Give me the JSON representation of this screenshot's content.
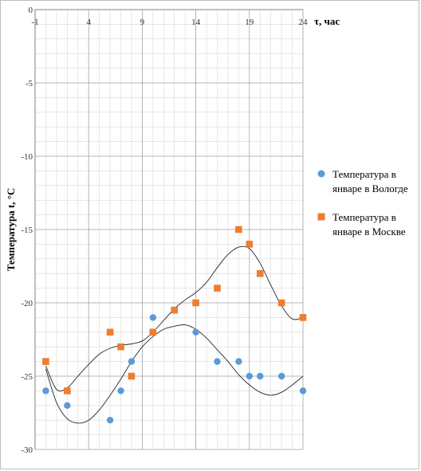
{
  "chart_data": {
    "type": "scatter",
    "xlabel": "τ, час",
    "ylabel": "Температура  t,  °C",
    "x_ticks": [
      -1,
      4,
      9,
      14,
      19,
      24
    ],
    "y_ticks": [
      0,
      -5,
      -10,
      -15,
      -20,
      -25,
      -30
    ],
    "xlim": [
      -1,
      24
    ],
    "ylim": [
      -30,
      0
    ],
    "grid": true,
    "x_axis_position": "top",
    "legend_position": "right",
    "series": [
      {
        "name": "Температура в январе в Вологде",
        "color": "#5b9bd5",
        "marker": "circle",
        "points": [
          {
            "x": 0,
            "y": -26
          },
          {
            "x": 2,
            "y": -27
          },
          {
            "x": 6,
            "y": -28
          },
          {
            "x": 7,
            "y": -26
          },
          {
            "x": 8,
            "y": -24
          },
          {
            "x": 10,
            "y": -21
          },
          {
            "x": 14,
            "y": -22
          },
          {
            "x": 16,
            "y": -24
          },
          {
            "x": 18,
            "y": -24
          },
          {
            "x": 19,
            "y": -25
          },
          {
            "x": 20,
            "y": -25
          },
          {
            "x": 22,
            "y": -25
          },
          {
            "x": 24,
            "y": -26
          }
        ],
        "trend": [
          [
            0,
            -24.5
          ],
          [
            1,
            -26.8
          ],
          [
            2,
            -27.9
          ],
          [
            3,
            -28.2
          ],
          [
            4,
            -28.0
          ],
          [
            5,
            -27.3
          ],
          [
            6,
            -26.3
          ],
          [
            7,
            -25.2
          ],
          [
            8,
            -24.0
          ],
          [
            9,
            -23.0
          ],
          [
            10,
            -22.3
          ],
          [
            11,
            -21.8
          ],
          [
            12,
            -21.6
          ],
          [
            13,
            -21.5
          ],
          [
            14,
            -21.8
          ],
          [
            15,
            -22.4
          ],
          [
            16,
            -23.2
          ],
          [
            17,
            -24.0
          ],
          [
            18,
            -24.9
          ],
          [
            19,
            -25.6
          ],
          [
            20,
            -26.1
          ],
          [
            21,
            -26.3
          ],
          [
            22,
            -26.1
          ],
          [
            23,
            -25.6
          ],
          [
            24,
            -25.0
          ]
        ]
      },
      {
        "name": "Температура в январе в Москве",
        "color": "#ed7d31",
        "marker": "square",
        "points": [
          {
            "x": 0,
            "y": -24
          },
          {
            "x": 2,
            "y": -26
          },
          {
            "x": 6,
            "y": -22
          },
          {
            "x": 7,
            "y": -23
          },
          {
            "x": 8,
            "y": -25
          },
          {
            "x": 10,
            "y": -22
          },
          {
            "x": 12,
            "y": -20.5
          },
          {
            "x": 14,
            "y": -20
          },
          {
            "x": 16,
            "y": -19
          },
          {
            "x": 18,
            "y": -15
          },
          {
            "x": 19,
            "y": -16
          },
          {
            "x": 20,
            "y": -18
          },
          {
            "x": 22,
            "y": -20
          },
          {
            "x": 24,
            "y": -21
          }
        ],
        "trend": [
          [
            0,
            -24.3
          ],
          [
            1,
            -25.9
          ],
          [
            2,
            -25.8
          ],
          [
            3,
            -25.0
          ],
          [
            4,
            -24.2
          ],
          [
            5,
            -23.5
          ],
          [
            6,
            -23.1
          ],
          [
            7,
            -22.9
          ],
          [
            8,
            -22.8
          ],
          [
            9,
            -22.6
          ],
          [
            10,
            -22.0
          ],
          [
            11,
            -21.2
          ],
          [
            12,
            -20.4
          ],
          [
            13,
            -19.8
          ],
          [
            14,
            -19.3
          ],
          [
            15,
            -18.6
          ],
          [
            16,
            -17.6
          ],
          [
            17,
            -16.7
          ],
          [
            18,
            -16.2
          ],
          [
            19,
            -16.3
          ],
          [
            20,
            -17.3
          ],
          [
            21,
            -18.8
          ],
          [
            22,
            -20.2
          ],
          [
            23,
            -21.1
          ],
          [
            24,
            -21.0
          ]
        ]
      }
    ]
  }
}
